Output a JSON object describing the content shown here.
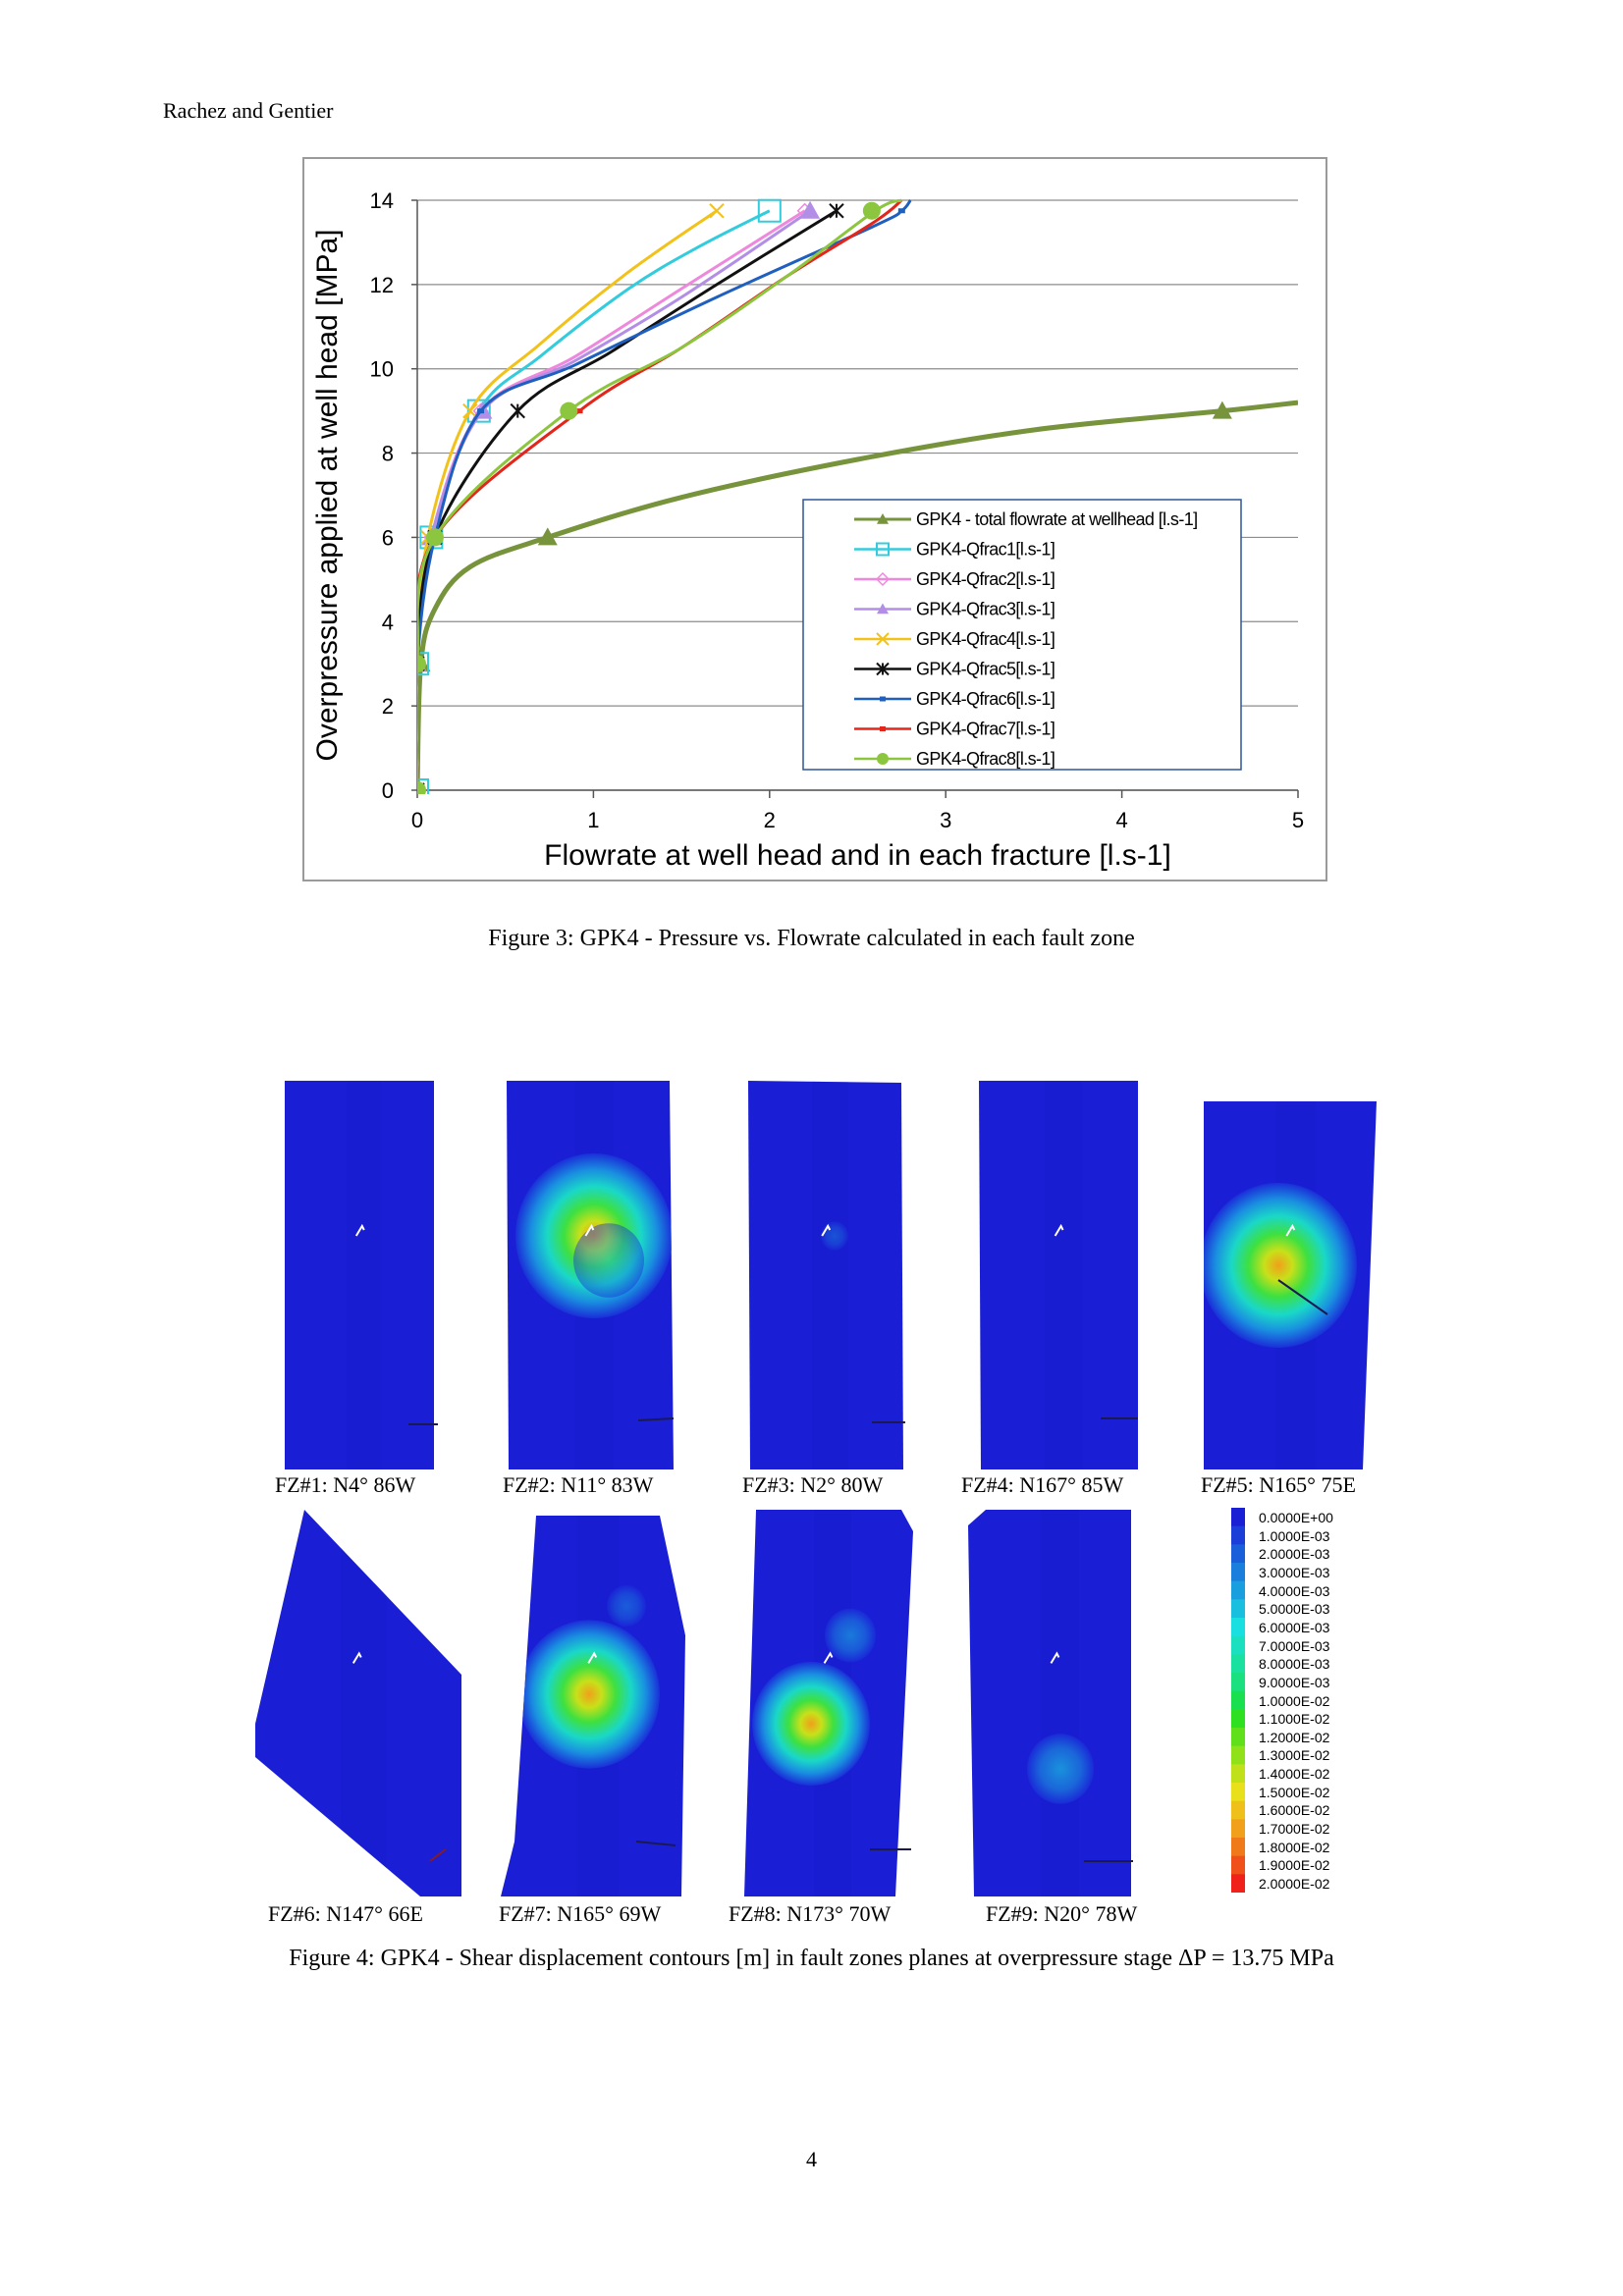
{
  "header": {
    "running_head": "Rachez and Gentier"
  },
  "figure3": {
    "caption": "Figure 3: GPK4 - Pressure vs. Flowrate calculated in each fault zone"
  },
  "chart_data": {
    "type": "line",
    "xlabel": "Flowrate at well head and in each fracture [l.s-1]",
    "ylabel": "Overpressure applied at well head [MPa]",
    "xlim": [
      0,
      5
    ],
    "ylim": [
      0,
      14
    ],
    "xticks": [
      0,
      1,
      2,
      3,
      4,
      5
    ],
    "yticks": [
      0,
      2,
      4,
      6,
      8,
      10,
      12,
      14
    ],
    "grid": "horizontal",
    "legend_position": "lower-right",
    "series": [
      {
        "name": "GPK4 - total flowrate at wellhead [l.s-1]",
        "color": "#77933c",
        "marker": "triangle",
        "x": [
          0.0,
          0.02,
          0.1,
          0.3,
          0.74,
          1.5,
          2.5,
          3.5,
          4.57,
          5.0
        ],
        "y": [
          0.0,
          3.0,
          4.3,
          5.3,
          6.0,
          6.95,
          7.85,
          8.55,
          9.0,
          9.2
        ],
        "markers_x": [
          0.0,
          0.02,
          0.74,
          4.57
        ],
        "markers_y": [
          0.0,
          3.0,
          6.0,
          9.0
        ]
      },
      {
        "name": "GPK4-Qfrac1[l.s-1]",
        "color": "#33ccdd",
        "marker": "square",
        "x": [
          0.0,
          0.0,
          0.08,
          0.35,
          0.7,
          1.2,
          1.6,
          2.0
        ],
        "y": [
          0.0,
          3.0,
          6.0,
          9.0,
          10.3,
          11.9,
          12.9,
          13.75
        ],
        "markers_x": [
          0.0,
          0.0,
          0.08,
          0.35,
          2.0
        ],
        "markers_y": [
          0.0,
          3.0,
          6.0,
          9.0,
          13.75
        ]
      },
      {
        "name": "GPK4-Qfrac2[l.s-1]",
        "color": "#ee88dd",
        "marker": "diamond",
        "x": [
          0.0,
          0.0,
          0.08,
          0.36,
          0.9,
          1.5,
          2.2
        ],
        "y": [
          0.0,
          3.0,
          6.0,
          9.0,
          10.3,
          11.9,
          13.75
        ],
        "markers_x": [
          0.0,
          0.0,
          0.08,
          0.36,
          2.2
        ],
        "markers_y": [
          0.0,
          3.0,
          6.0,
          9.0,
          13.75
        ]
      },
      {
        "name": "GPK4-Qfrac3[l.s-1]",
        "color": "#b28ee6",
        "marker": "triangle",
        "x": [
          0.0,
          0.0,
          0.08,
          0.37,
          0.9,
          1.5,
          2.23
        ],
        "y": [
          0.0,
          3.0,
          6.0,
          9.0,
          10.2,
          11.7,
          13.75
        ],
        "markers_x": [
          0.0,
          0.0,
          0.08,
          0.37,
          2.23
        ],
        "markers_y": [
          0.0,
          3.0,
          6.0,
          9.0,
          13.75
        ]
      },
      {
        "name": "GPK4-Qfrac4[l.s-1]",
        "color": "#f2c21a",
        "marker": "x",
        "x": [
          0.0,
          0.0,
          0.06,
          0.3,
          0.7,
          1.2,
          1.7
        ],
        "y": [
          0.0,
          3.0,
          6.0,
          9.0,
          10.6,
          12.3,
          13.75
        ],
        "markers_x": [
          0.0,
          0.0,
          0.06,
          0.3,
          1.7
        ],
        "markers_y": [
          0.0,
          3.0,
          6.0,
          9.0,
          13.75
        ]
      },
      {
        "name": "GPK4-Qfrac5[l.s-1]",
        "color": "#111111",
        "marker": "star",
        "x": [
          0.0,
          0.0,
          0.1,
          0.57,
          1.1,
          1.7,
          2.38
        ],
        "y": [
          0.0,
          3.0,
          6.0,
          9.0,
          10.4,
          12.0,
          13.75
        ],
        "markers_x": [
          0.0,
          0.0,
          0.1,
          0.57,
          2.38
        ],
        "markers_y": [
          0.0,
          3.0,
          6.0,
          9.0,
          13.75
        ]
      },
      {
        "name": "GPK4-Qfrac6[l.s-1]",
        "color": "#1f5fbf",
        "marker": "dash",
        "x": [
          0.0,
          0.0,
          0.1,
          0.36,
          0.9,
          1.7,
          2.6,
          2.75,
          2.8
        ],
        "y": [
          0.0,
          3.0,
          6.0,
          9.0,
          10.1,
          11.7,
          13.4,
          13.75,
          14.0
        ],
        "markers_x": [
          0.0,
          0.0,
          0.1,
          0.36,
          2.75
        ],
        "markers_y": [
          0.0,
          3.0,
          6.0,
          9.0,
          13.75
        ]
      },
      {
        "name": "GPK4-Qfrac7[l.s-1]",
        "color": "#e3261c",
        "marker": "dash",
        "x": [
          0.0,
          0.0,
          0.1,
          0.92,
          1.5,
          2.1,
          2.6,
          2.75
        ],
        "y": [
          0.0,
          3.0,
          6.0,
          9.0,
          10.5,
          12.2,
          13.5,
          14.0
        ],
        "markers_x": [
          0.0,
          0.0,
          0.1,
          0.92,
          2.6
        ],
        "markers_y": [
          0.0,
          3.0,
          6.0,
          9.0,
          13.75
        ]
      },
      {
        "name": "GPK4-Qfrac8[l.s-1]",
        "color": "#8cc63f",
        "marker": "circle",
        "x": [
          0.0,
          0.0,
          0.1,
          0.86,
          1.5,
          2.1,
          2.6,
          2.75
        ],
        "y": [
          0.0,
          3.0,
          6.0,
          9.0,
          10.5,
          12.2,
          13.75,
          14.0
        ],
        "markers_x": [
          0.0,
          0.0,
          0.1,
          0.86,
          2.58
        ],
        "markers_y": [
          0.0,
          3.0,
          6.0,
          9.0,
          13.75
        ]
      }
    ]
  },
  "figure4": {
    "caption": "Figure 4: GPK4 - Shear displacement contours [m] in fault zones planes at overpressure stage ΔP = 13.75 MPa",
    "panels": [
      {
        "label": "FZ#1: N4° 86W"
      },
      {
        "label": "FZ#2: N11° 83W"
      },
      {
        "label": "FZ#3: N2° 80W"
      },
      {
        "label": "FZ#4: N167° 85W"
      },
      {
        "label": "FZ#5: N165° 75E"
      },
      {
        "label": "FZ#6: N147° 66E"
      },
      {
        "label": "FZ#7: N165° 69W"
      },
      {
        "label": "FZ#8: N173° 70W"
      },
      {
        "label": "FZ#9: N20° 78W"
      }
    ],
    "colorbar": {
      "labels": [
        "0.0000E+00",
        "1.0000E-03",
        "2.0000E-03",
        "3.0000E-03",
        "4.0000E-03",
        "5.0000E-03",
        "6.0000E-03",
        "7.0000E-03",
        "8.0000E-03",
        "9.0000E-03",
        "1.0000E-02",
        "1.1000E-02",
        "1.2000E-02",
        "1.3000E-02",
        "1.4000E-02",
        "1.5000E-02",
        "1.6000E-02",
        "1.7000E-02",
        "1.8000E-02",
        "1.9000E-02",
        "2.0000E-02"
      ],
      "colors": [
        "#1a1fd6",
        "#1a3fd8",
        "#1a5fda",
        "#1a7fdc",
        "#1a9fde",
        "#1abfe0",
        "#1adfe0",
        "#1ae0c0",
        "#1ae0a0",
        "#1ae080",
        "#1ae050",
        "#2ee020",
        "#60e01a",
        "#90e01a",
        "#c0e01a",
        "#e8e01a",
        "#f0c01a",
        "#f0a01a",
        "#f07a1a",
        "#f0501a",
        "#f0201a"
      ]
    }
  },
  "footer": {
    "page_number": "4"
  }
}
